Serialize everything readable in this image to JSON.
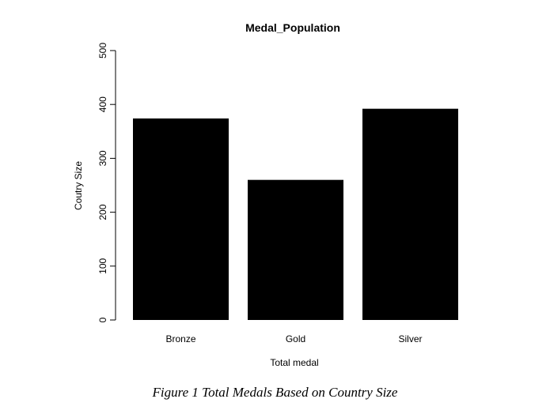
{
  "chart_data": {
    "type": "bar",
    "title": "Medal_Population",
    "xlabel": "Total medal",
    "ylabel": "Coutry Size",
    "categories": [
      "Bronze",
      "Gold",
      "Silver"
    ],
    "values": [
      374,
      260,
      392
    ],
    "ylim": [
      0,
      500
    ],
    "yticks": [
      "0",
      "100",
      "200",
      "300",
      "400",
      "500"
    ],
    "bar_color": "#000000",
    "grid": false,
    "legend": "none"
  },
  "caption": "Figure 1 Total Medals Based on Country Size"
}
